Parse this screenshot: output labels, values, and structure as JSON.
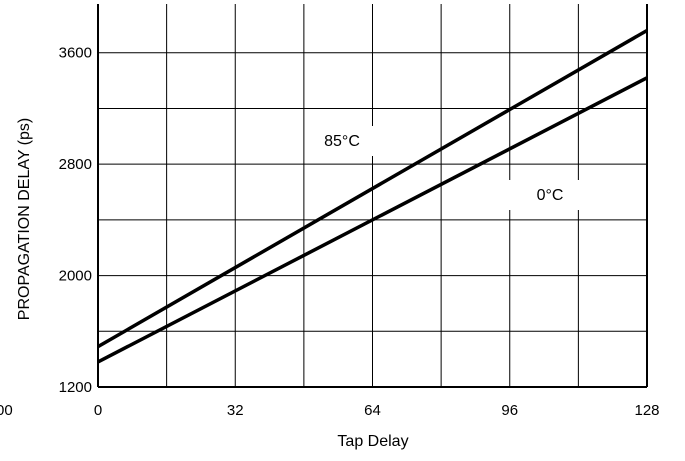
{
  "chart_data": {
    "type": "line",
    "title": "",
    "xlabel": "Tap Delay",
    "ylabel": "PROPAGATION DELAY (ps)",
    "xlim": [
      0,
      128
    ],
    "ylim": [
      1200,
      3950
    ],
    "x_ticks": [
      0,
      32,
      64,
      96,
      128
    ],
    "x_tick_labels": [
      "0",
      "32",
      "64",
      "96",
      "128"
    ],
    "y_ticks": [
      1200,
      2000,
      2800,
      3600
    ],
    "y_tick_labels": [
      "1200",
      "2000",
      "2800",
      "3600"
    ],
    "left_edge_label": "00",
    "grid": true,
    "series": [
      {
        "name": "85°C",
        "color": "#000000",
        "x": [
          0,
          128
        ],
        "y": [
          1490,
          3760
        ]
      },
      {
        "name": "0°C",
        "color": "#000000",
        "x": [
          0,
          128
        ],
        "y": [
          1380,
          3420
        ]
      }
    ]
  }
}
